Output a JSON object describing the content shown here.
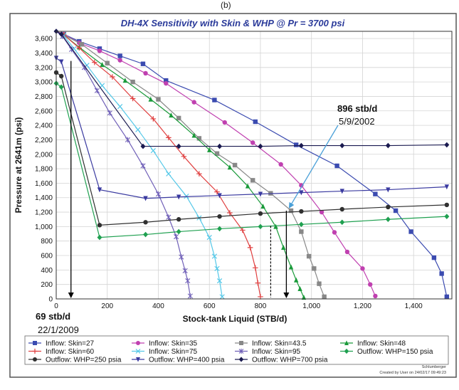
{
  "figure_label": "(b)",
  "chart_data": {
    "type": "line",
    "title": "DH-4X Sensitivity with Skin & WHP @ Pr = 3700 psi",
    "xlabel": "Stock-tank Liquid (STB/d)",
    "ylabel": "Pressure at 2641m (psi)",
    "xlim": [
      0,
      1550
    ],
    "ylim": [
      0,
      3700
    ],
    "x_ticks": [
      "0",
      "200",
      "400",
      "600",
      "800",
      "1,000",
      "1,200",
      "1,400"
    ],
    "y_ticks": [
      "0",
      "200",
      "400",
      "600",
      "800",
      "1,000",
      "1,200",
      "1,400",
      "1,600",
      "1,800",
      "2,000",
      "2,200",
      "2,400",
      "2,600",
      "2,800",
      "3,000",
      "3,200",
      "3,400",
      "3,600"
    ],
    "grid": true,
    "legend_position": "bottom",
    "series": [
      {
        "name": "Inflow: Skin=27",
        "color": "#3b4bb0",
        "marker": "square",
        "x": [
          0,
          30,
          90,
          170,
          250,
          340,
          430,
          620,
          780,
          940,
          1100,
          1250,
          1330,
          1390,
          1480,
          1510,
          1530
        ],
        "y": [
          3700,
          3660,
          3560,
          3460,
          3360,
          3250,
          3020,
          2750,
          2450,
          2130,
          1840,
          1450,
          1220,
          930,
          570,
          350,
          30
        ]
      },
      {
        "name": "Inflow: Skin=35",
        "color": "#c040b0",
        "marker": "circle",
        "x": [
          0,
          30,
          90,
          170,
          250,
          350,
          430,
          540,
          660,
          770,
          880,
          960,
          1040,
          1090,
          1140,
          1200,
          1230,
          1250
        ],
        "y": [
          3700,
          3660,
          3540,
          3430,
          3300,
          3120,
          2980,
          2720,
          2440,
          2160,
          1860,
          1570,
          1200,
          920,
          650,
          420,
          200,
          40
        ]
      },
      {
        "name": "Inflow: Skin=43.5",
        "color": "#888888",
        "marker": "square",
        "x": [
          0,
          30,
          100,
          200,
          300,
          400,
          480,
          560,
          630,
          700,
          770,
          840,
          920,
          960,
          990,
          1010,
          1030,
          1050
        ],
        "y": [
          3700,
          3650,
          3520,
          3260,
          3000,
          2760,
          2500,
          2220,
          2010,
          1850,
          1640,
          1460,
          1220,
          930,
          590,
          420,
          210,
          30
        ]
      },
      {
        "name": "Inflow: Skin=48",
        "color": "#1a9a3a",
        "marker": "triangle",
        "x": [
          0,
          30,
          90,
          180,
          270,
          370,
          450,
          540,
          600,
          680,
          750,
          810,
          860,
          890,
          920,
          940,
          955,
          970
        ],
        "y": [
          3700,
          3650,
          3480,
          3240,
          3020,
          2760,
          2540,
          2260,
          2060,
          1820,
          1560,
          1280,
          1000,
          710,
          440,
          260,
          140,
          20
        ]
      },
      {
        "name": "Inflow: Skin=60",
        "color": "#e04040",
        "marker": "plus",
        "x": [
          0,
          30,
          90,
          150,
          220,
          300,
          380,
          440,
          500,
          560,
          630,
          680,
          730,
          760,
          780,
          790,
          800
        ],
        "y": [
          3700,
          3650,
          3470,
          3270,
          3070,
          2770,
          2490,
          2230,
          1970,
          1730,
          1480,
          1190,
          950,
          710,
          430,
          220,
          30
        ]
      },
      {
        "name": "Inflow: Skin=75",
        "color": "#55c8e8",
        "marker": "x",
        "x": [
          0,
          30,
          70,
          120,
          180,
          250,
          320,
          380,
          440,
          510,
          560,
          600,
          620,
          630,
          640,
          650
        ],
        "y": [
          3700,
          3640,
          3460,
          3230,
          2950,
          2660,
          2340,
          2050,
          1730,
          1420,
          1120,
          850,
          590,
          420,
          250,
          30
        ]
      },
      {
        "name": "Inflow: Skin=95",
        "color": "#7060b8",
        "marker": "asterisk",
        "x": [
          0,
          25,
          60,
          110,
          160,
          210,
          280,
          340,
          400,
          440,
          470,
          490,
          505,
          515,
          525
        ],
        "y": [
          3700,
          3630,
          3450,
          3200,
          2880,
          2570,
          2200,
          1840,
          1450,
          1130,
          860,
          580,
          390,
          250,
          40
        ]
      },
      {
        "name": "Outflow: WHP=150 psia",
        "color": "#1fa050",
        "marker": "diamond",
        "x": [
          0,
          20,
          170,
          350,
          480,
          640,
          800,
          960,
          1120,
          1300,
          1530
        ],
        "y": [
          2980,
          2930,
          850,
          890,
          930,
          970,
          1000,
          1030,
          1060,
          1100,
          1140
        ]
      },
      {
        "name": "Outflow: WHP=250 psia",
        "color": "#303030",
        "marker": "circle",
        "x": [
          0,
          20,
          170,
          350,
          480,
          640,
          800,
          960,
          1120,
          1300,
          1530
        ],
        "y": [
          3130,
          3080,
          1020,
          1060,
          1100,
          1140,
          1180,
          1210,
          1240,
          1270,
          1300
        ]
      },
      {
        "name": "Outflow: WHP=400 psia",
        "color": "#3a3aa0",
        "marker": "triangle-down",
        "x": [
          0,
          20,
          170,
          350,
          480,
          640,
          800,
          960,
          1120,
          1300,
          1530
        ],
        "y": [
          3330,
          3280,
          1510,
          1390,
          1410,
          1430,
          1450,
          1470,
          1490,
          1510,
          1550
        ]
      },
      {
        "name": "Outflow: WHP=700 psia",
        "color": "#1a1a50",
        "marker": "diamond",
        "x": [
          0,
          20,
          340,
          480,
          640,
          800,
          960,
          1120,
          1300,
          1530
        ],
        "y": [
          3700,
          3660,
          2110,
          2110,
          2110,
          2110,
          2120,
          2120,
          2120,
          2130
        ]
      }
    ],
    "annotations": [
      {
        "label": "896 stb/d",
        "date": "5/9/2002"
      },
      {
        "label": "69 stb/d",
        "date": "22/1/2009"
      }
    ],
    "footer": {
      "company": "Schlumberger",
      "created": "Created by User on 24/02/17 09:49:23"
    }
  }
}
